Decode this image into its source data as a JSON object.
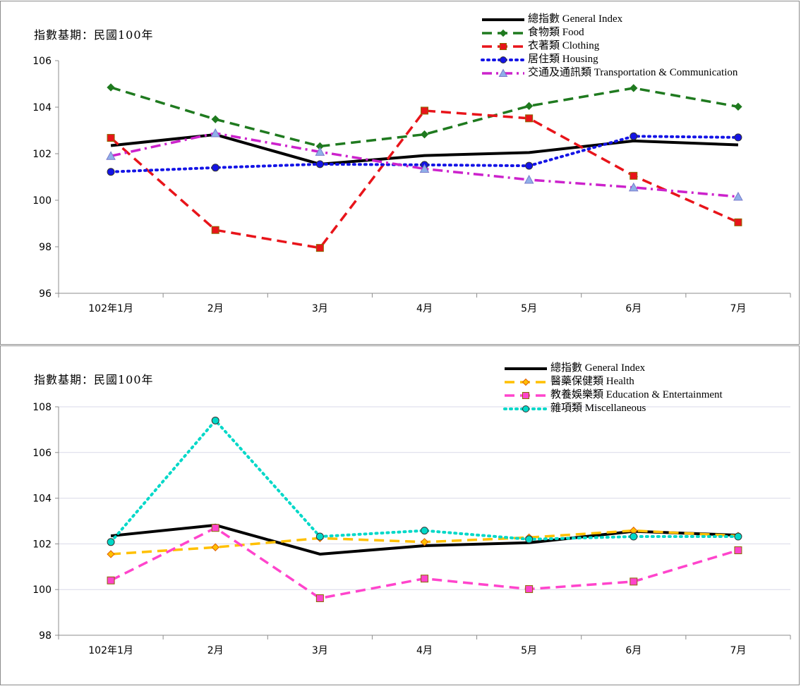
{
  "chart_data": [
    {
      "type": "line",
      "base_note": "指數基期：民國100年",
      "categories": [
        "102年1月",
        "2月",
        "3月",
        "4月",
        "5月",
        "6月",
        "7月"
      ],
      "ylim": [
        96,
        106
      ],
      "yticks": [
        "96",
        "98",
        "100",
        "102",
        "104",
        "106"
      ],
      "grid": false,
      "legend_position": "top-right",
      "series": [
        {
          "name": "總指數 General Index",
          "values": [
            102.35,
            102.82,
            101.55,
            101.92,
            102.05,
            102.55,
            102.38
          ],
          "color": "#000000",
          "dash": "solid",
          "marker": "none"
        },
        {
          "name": "食物類 Food",
          "values": [
            104.85,
            103.48,
            102.32,
            102.83,
            104.05,
            104.82,
            104.02
          ],
          "color": "#1f7a1f",
          "dash": "dash",
          "marker": "diamond"
        },
        {
          "name": "衣著類 Clothing",
          "values": [
            102.68,
            98.72,
            97.95,
            103.85,
            103.52,
            101.05,
            99.05
          ],
          "color": "#e8141a",
          "dash": "dash",
          "marker": "square"
        },
        {
          "name": "居住類 Housing",
          "values": [
            101.22,
            101.4,
            101.55,
            101.52,
            101.48,
            102.75,
            102.7
          ],
          "color": "#1414e6",
          "dash": "dot",
          "marker": "circle"
        },
        {
          "name": "交通及通訊類 Transportation & Communication",
          "values": [
            101.9,
            102.88,
            102.08,
            101.35,
            100.88,
            100.55,
            100.15
          ],
          "color": "#cc22cc",
          "dash": "dashdot",
          "marker": "triangle"
        }
      ]
    },
    {
      "type": "line",
      "base_note": "指數基期：民國100年",
      "categories": [
        "102年1月",
        "2月",
        "3月",
        "4月",
        "5月",
        "6月",
        "7月"
      ],
      "ylim": [
        98,
        108
      ],
      "yticks": [
        "98",
        "100",
        "102",
        "104",
        "106",
        "108"
      ],
      "grid": true,
      "legend_position": "top-right",
      "series": [
        {
          "name": "總指數 General Index",
          "values": [
            102.35,
            102.82,
            101.55,
            101.92,
            102.05,
            102.55,
            102.38
          ],
          "color": "#000000",
          "dash": "solid",
          "marker": "none"
        },
        {
          "name": "醫藥保健類 Health",
          "values": [
            101.55,
            101.85,
            102.25,
            102.08,
            102.28,
            102.58,
            102.35
          ],
          "color": "#ffc000",
          "dash": "dash",
          "marker": "diamond"
        },
        {
          "name": "教養娛樂類 Education & Entertainment",
          "values": [
            100.4,
            102.7,
            99.62,
            100.48,
            100.02,
            100.35,
            101.72
          ],
          "color": "#ff44cc",
          "dash": "dash",
          "marker": "square"
        },
        {
          "name": "雜項類 Miscellaneous",
          "values": [
            102.08,
            107.4,
            102.32,
            102.58,
            102.2,
            102.32,
            102.32
          ],
          "color": "#00d8c8",
          "dash": "dot",
          "marker": "circle"
        }
      ]
    }
  ]
}
